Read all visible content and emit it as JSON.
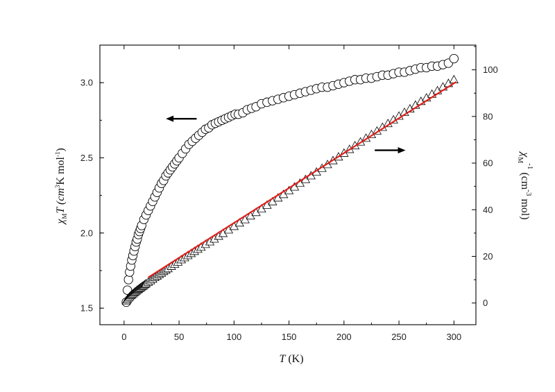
{
  "chart_data": {
    "type": "scatter",
    "xlabel": {
      "prefix": "",
      "symbol": "T",
      "suffix": " (K)"
    },
    "ylabel_left": {
      "symbol": "χ",
      "sub": "M",
      "mid": "T (cm",
      "sup1": "3",
      "mid2": "K mol",
      "sup2": "-1",
      "end": ")"
    },
    "ylabel_right": {
      "symbol": "χ",
      "sub": "M",
      "sup0": "-1",
      "mid": " (cm",
      "sup1": "-3",
      "end": " mol)"
    },
    "xlim": [
      -22,
      320
    ],
    "ylim_left": [
      1.39,
      3.25
    ],
    "ylim_right": [
      -9.3,
      110.6
    ],
    "x_ticks": [
      0,
      50,
      100,
      150,
      200,
      250,
      300
    ],
    "y_left_ticks": [
      "1.5",
      "2.0",
      "2.5",
      "3.0"
    ],
    "y_left_tick_values": [
      1.5,
      2.0,
      2.5,
      3.0
    ],
    "y_right_ticks": [
      "0",
      "20",
      "40",
      "60",
      "80",
      "100"
    ],
    "y_right_tick_values": [
      0,
      20,
      40,
      60,
      80,
      100
    ],
    "grid": false,
    "series": [
      {
        "marker": "circle",
        "axis": "left",
        "color": "#000000",
        "x": [
          2,
          3,
          4,
          5,
          6,
          7,
          8,
          9,
          10,
          11,
          12,
          13,
          14,
          15,
          16,
          18,
          20,
          22,
          24,
          26,
          28,
          30,
          32,
          34,
          36,
          38,
          40,
          42,
          44,
          46,
          48,
          50,
          53,
          56,
          59,
          62,
          65,
          68,
          71,
          74,
          77,
          80,
          83,
          86,
          89,
          92,
          95,
          98,
          101,
          104,
          108,
          112,
          116,
          120,
          125,
          130,
          135,
          140,
          145,
          150,
          155,
          160,
          165,
          170,
          175,
          180,
          185,
          190,
          195,
          200,
          205,
          210,
          215,
          220,
          225,
          230,
          235,
          240,
          245,
          250,
          255,
          260,
          265,
          270,
          275,
          280,
          285,
          290,
          295,
          300
        ],
        "y": [
          1.54,
          1.62,
          1.69,
          1.74,
          1.78,
          1.82,
          1.85,
          1.88,
          1.91,
          1.94,
          1.96,
          1.99,
          2.01,
          2.03,
          2.05,
          2.09,
          2.12,
          2.15,
          2.18,
          2.21,
          2.24,
          2.27,
          2.3,
          2.33,
          2.35,
          2.38,
          2.4,
          2.42,
          2.44,
          2.46,
          2.48,
          2.5,
          2.53,
          2.56,
          2.59,
          2.61,
          2.63,
          2.65,
          2.67,
          2.69,
          2.7,
          2.72,
          2.73,
          2.74,
          2.75,
          2.76,
          2.77,
          2.78,
          2.79,
          2.79,
          2.8,
          2.82,
          2.83,
          2.84,
          2.86,
          2.87,
          2.88,
          2.89,
          2.9,
          2.91,
          2.92,
          2.93,
          2.94,
          2.95,
          2.96,
          2.97,
          2.97,
          2.98,
          2.99,
          3.0,
          3.01,
          3.02,
          3.02,
          3.03,
          3.03,
          3.04,
          3.05,
          3.05,
          3.06,
          3.07,
          3.07,
          3.08,
          3.09,
          3.1,
          3.1,
          3.11,
          3.11,
          3.12,
          3.13,
          3.16
        ]
      },
      {
        "marker": "triangle",
        "axis": "right",
        "color": "#000000",
        "x": [
          2,
          3,
          4,
          5,
          6,
          7,
          8,
          9,
          10,
          11,
          12,
          13,
          14,
          15,
          16,
          17,
          18,
          19,
          20,
          22,
          24,
          26,
          28,
          30,
          32,
          34,
          36,
          38,
          40,
          43,
          46,
          49,
          52,
          55,
          58,
          61,
          64,
          67,
          70,
          74,
          78,
          82,
          86,
          90,
          95,
          100,
          105,
          110,
          115,
          120,
          125,
          130,
          135,
          140,
          145,
          150,
          155,
          160,
          165,
          170,
          175,
          180,
          185,
          190,
          195,
          200,
          205,
          210,
          215,
          220,
          225,
          230,
          235,
          240,
          245,
          250,
          255,
          260,
          265,
          270,
          275,
          280,
          285,
          290,
          295,
          300
        ],
        "y": [
          1.0,
          1.6,
          2.2,
          2.7,
          3.2,
          3.6,
          4.0,
          4.4,
          4.8,
          5.2,
          5.6,
          5.9,
          6.3,
          6.6,
          7.0,
          7.3,
          7.6,
          8.0,
          8.3,
          9.0,
          9.6,
          10.3,
          11.0,
          11.6,
          12.3,
          12.9,
          13.6,
          14.2,
          14.8,
          15.8,
          16.7,
          17.6,
          18.6,
          19.5,
          20.4,
          21.3,
          22.2,
          23.1,
          24.0,
          25.2,
          26.3,
          27.5,
          28.7,
          29.9,
          31.4,
          32.9,
          34.4,
          35.8,
          37.4,
          38.9,
          40.4,
          42.0,
          43.5,
          45.1,
          46.6,
          48.2,
          49.8,
          51.4,
          53.0,
          54.6,
          56.2,
          57.8,
          59.4,
          61.1,
          62.7,
          64.3,
          65.9,
          67.5,
          69.1,
          70.7,
          72.3,
          73.8,
          75.4,
          77.0,
          78.6,
          80.2,
          81.8,
          83.3,
          84.9,
          86.5,
          88.0,
          89.6,
          91.1,
          92.7,
          94.2,
          95.8
        ]
      }
    ],
    "fit_line": {
      "color": "#e0201b",
      "x": [
        22,
        302
      ],
      "y": [
        11.0,
        94.8
      ]
    },
    "arrows": [
      {
        "direction": "left",
        "points_to": "left-axis",
        "x_from": 66,
        "x_to": 38,
        "y_left": 2.76
      },
      {
        "direction": "right",
        "points_to": "right-axis",
        "x_from": 228,
        "x_to": 256,
        "y_right": 65.5
      }
    ]
  }
}
